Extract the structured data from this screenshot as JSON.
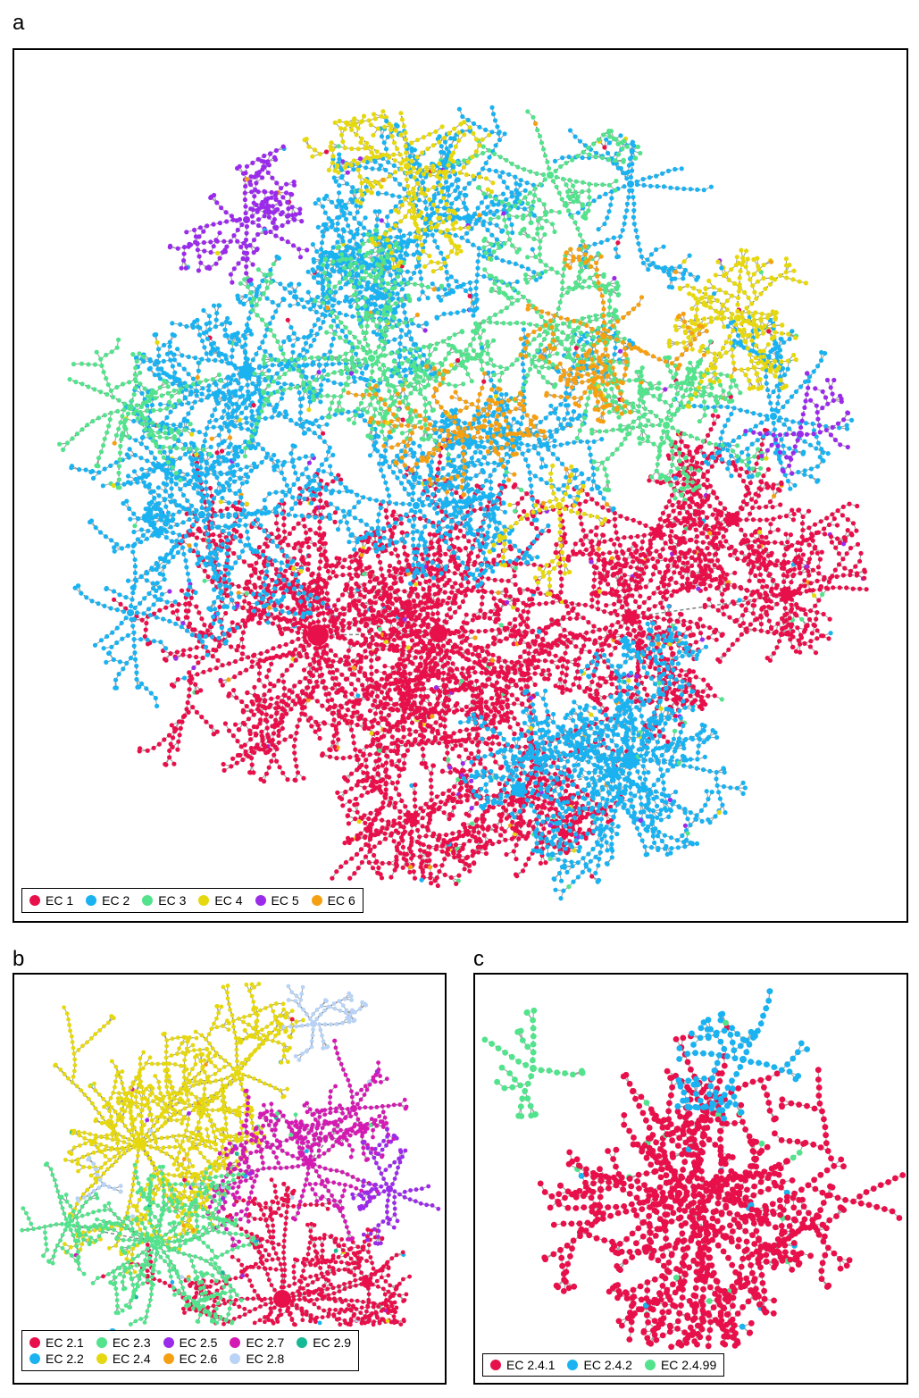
{
  "panels": [
    {
      "letter": "a",
      "legend": [
        {
          "label": "EC 1",
          "color": "#e8104a"
        },
        {
          "label": "EC 2",
          "color": "#1ab2f0"
        },
        {
          "label": "EC 3",
          "color": "#52e38c"
        },
        {
          "label": "EC 4",
          "color": "#e6d80f"
        },
        {
          "label": "EC 5",
          "color": "#9b2bea"
        },
        {
          "label": "EC 6",
          "color": "#f5a012"
        }
      ]
    },
    {
      "letter": "b",
      "legend": [
        {
          "label": "EC 2.1",
          "color": "#e8104a"
        },
        {
          "label": "EC 2.3",
          "color": "#52e38c"
        },
        {
          "label": "EC 2.5",
          "color": "#9b2bea"
        },
        {
          "label": "EC 2.7",
          "color": "#d31bb2"
        },
        {
          "label": "EC 2.9",
          "color": "#16b895"
        },
        {
          "label": "EC 2.2",
          "color": "#1ab2f0"
        },
        {
          "label": "EC 2.4",
          "color": "#e6d80f"
        },
        {
          "label": "EC 2.6",
          "color": "#f5a012"
        },
        {
          "label": "EC 2.8",
          "color": "#b8d3f5"
        }
      ]
    },
    {
      "letter": "c",
      "legend": [
        {
          "label": "EC 2.4.1",
          "color": "#e8104a"
        },
        {
          "label": "EC 2.4.2",
          "color": "#1ab2f0"
        },
        {
          "label": "EC 2.4.99",
          "color": "#52e38c"
        }
      ]
    }
  ],
  "chart_data": [
    {
      "type": "scatter",
      "panel": "a",
      "description_type": "tree-map network",
      "series": [
        {
          "name": "EC 1",
          "color": "#e8104a"
        },
        {
          "name": "EC 2",
          "color": "#1ab2f0"
        },
        {
          "name": "EC 3",
          "color": "#52e38c"
        },
        {
          "name": "EC 4",
          "color": "#e6d80f"
        },
        {
          "name": "EC 5",
          "color": "#9b2bea"
        },
        {
          "name": "EC 6",
          "color": "#f5a012"
        }
      ],
      "grid": false,
      "legend_position": "bottom-left"
    },
    {
      "type": "scatter",
      "panel": "b",
      "description_type": "tree-map network",
      "series": [
        {
          "name": "EC 2.1",
          "color": "#e8104a"
        },
        {
          "name": "EC 2.2",
          "color": "#1ab2f0"
        },
        {
          "name": "EC 2.3",
          "color": "#52e38c"
        },
        {
          "name": "EC 2.4",
          "color": "#e6d80f"
        },
        {
          "name": "EC 2.5",
          "color": "#9b2bea"
        },
        {
          "name": "EC 2.6",
          "color": "#f5a012"
        },
        {
          "name": "EC 2.7",
          "color": "#d31bb2"
        },
        {
          "name": "EC 2.8",
          "color": "#b8d3f5"
        },
        {
          "name": "EC 2.9",
          "color": "#16b895"
        }
      ],
      "grid": false,
      "legend_position": "bottom-left"
    },
    {
      "type": "scatter",
      "panel": "c",
      "description_type": "tree-map network",
      "series": [
        {
          "name": "EC 2.4.1",
          "color": "#e8104a"
        },
        {
          "name": "EC 2.4.2",
          "color": "#1ab2f0"
        },
        {
          "name": "EC 2.4.99",
          "color": "#52e38c"
        }
      ],
      "grid": false,
      "legend_position": "bottom-left"
    }
  ]
}
